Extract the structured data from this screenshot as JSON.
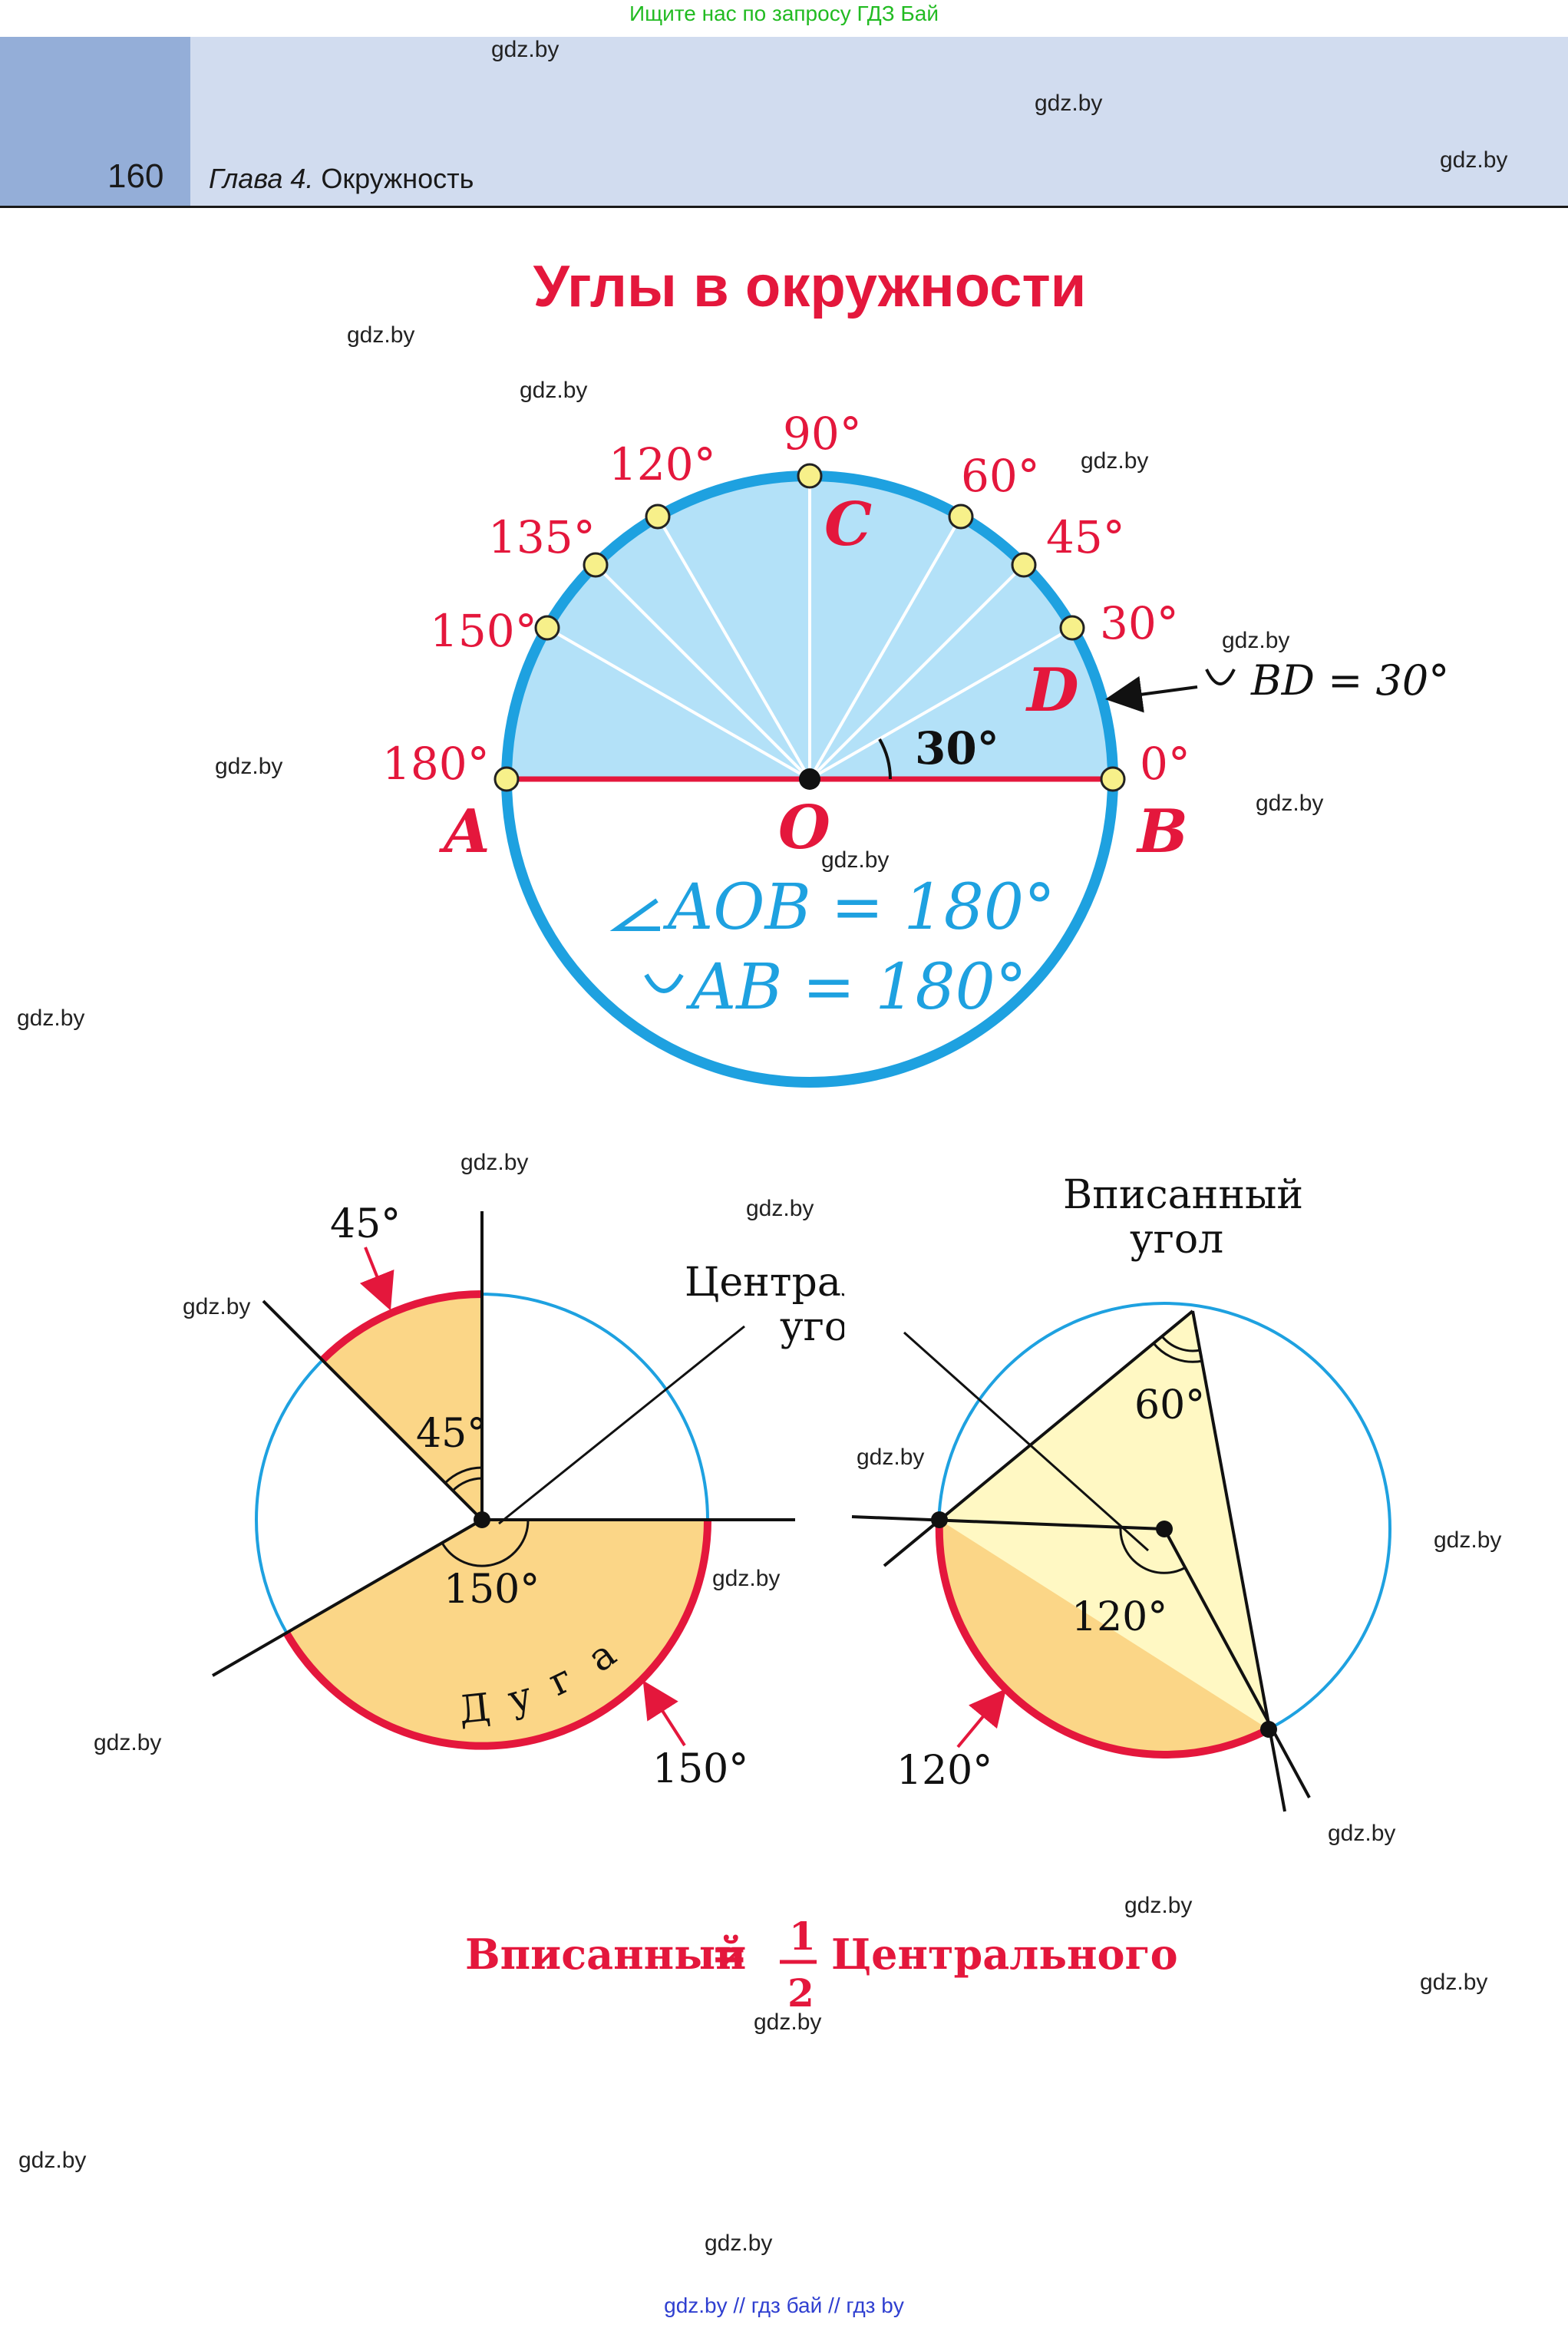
{
  "top_note": "Ищите нас по запросу ГДЗ Бай",
  "header": {
    "page_number": "160",
    "chapter_label": "Глава 4.",
    "chapter_title": "Окружность"
  },
  "title": "Углы в окружности",
  "watermark": "gdz.by",
  "diagram1": {
    "degree_labels": [
      "0°",
      "30°",
      "45°",
      "60°",
      "90°",
      "120°",
      "135°",
      "150°",
      "180°"
    ],
    "points": {
      "A": "A",
      "B": "B",
      "C": "C",
      "D": "D",
      "O": "O"
    },
    "angle_label": "30°",
    "arc_note_text": "BD = 30°",
    "formula_angle": "AOB = 180°",
    "formula_arc": "AB = 180°"
  },
  "diagram2": {
    "label_45_outer": "45°",
    "label_45_inner": "45°",
    "label_150_inner": "150°",
    "label_150_outer": "150°",
    "caption_line1": "Центральный",
    "caption_line2": "угол",
    "arc_word": [
      "Д",
      "у",
      "г",
      "а"
    ]
  },
  "diagram3": {
    "caption_line1": "Вписанный",
    "caption_line2": "угол",
    "label_60": "60°",
    "label_120_inner": "120°",
    "label_120_outer": "120°"
  },
  "formula": {
    "left": "Вписанный",
    "eq": "=",
    "num": "1",
    "den": "2",
    "right": "Центрального"
  },
  "footer": "gdz.by  //  гдз бай  //  гдз by",
  "colors": {
    "accent_red": "#e4173c",
    "circle_blue": "#1ea1e0",
    "sector_blue": "#b3e1f8",
    "sector_orange": "#fbd687",
    "sector_yellow": "#fff8c3",
    "header_band": "#d1dcef",
    "header_tab": "#94aed8"
  }
}
